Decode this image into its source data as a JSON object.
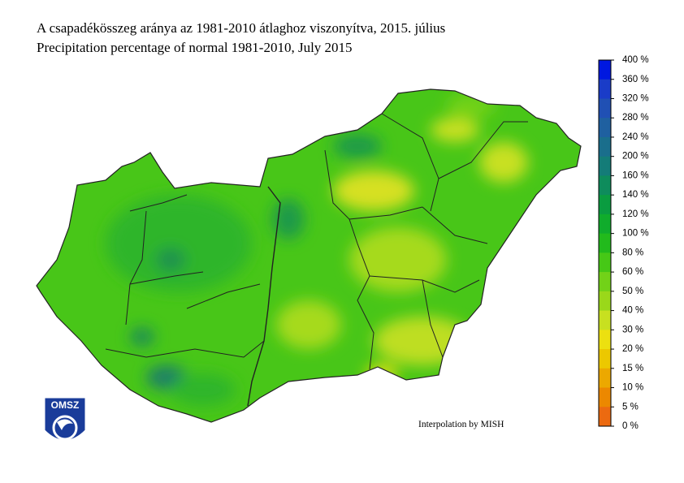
{
  "header": {
    "title_hu": "A csapadékösszeg aránya az 1981-2010 átlaghoz viszonyítva, 2015. július",
    "title_en": "Precipitation percentage of normal 1981-2010, July 2015"
  },
  "legend": {
    "labels": [
      "400 %",
      "360 %",
      "320 %",
      "280 %",
      "240 %",
      "200 %",
      "160 %",
      "140 %",
      "120 %",
      "100 %",
      "80 %",
      "60 %",
      "50 %",
      "40 %",
      "30 %",
      "20 %",
      "15 %",
      "10 %",
      "5 %",
      "0 %"
    ],
    "colors": [
      "#0018e0",
      "#1a3cc8",
      "#2050b4",
      "#1f60a0",
      "#1a6e8c",
      "#147c78",
      "#0e8c5c",
      "#0a9c40",
      "#10ac2c",
      "#22ba1c",
      "#46c816",
      "#72d218",
      "#9ad81a",
      "#c8e020",
      "#ece010",
      "#ecc800",
      "#eca800",
      "#ec8800",
      "#ec6a10"
    ]
  },
  "credit": "Interpolation by MISH",
  "logo": "OMSZ"
}
